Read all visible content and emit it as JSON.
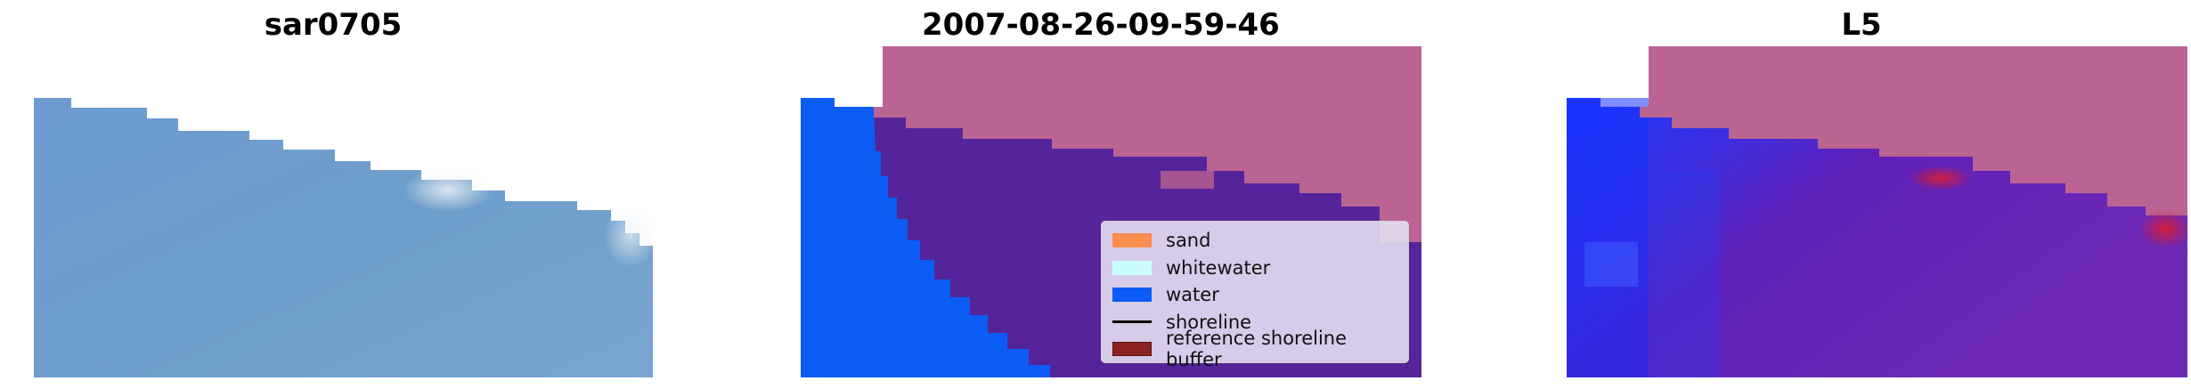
{
  "panels": [
    {
      "title": "sar0705"
    },
    {
      "title": "2007-08-26-09-59-46"
    },
    {
      "title": "L5"
    }
  ],
  "legend": {
    "items": [
      {
        "label": "sand",
        "color": "#f98e4e",
        "kind": "patch"
      },
      {
        "label": "whitewater",
        "color": "#ccfdfe",
        "kind": "patch"
      },
      {
        "label": "water",
        "color": "#0a5cf5",
        "kind": "patch"
      },
      {
        "label": "shoreline",
        "color": "#000000",
        "kind": "line"
      },
      {
        "label": "reference shoreline buffer",
        "color": "#8b2323",
        "kind": "patch",
        "edge": "#5a1010"
      }
    ]
  },
  "colors": {
    "rgb_water": "#6c9ccf",
    "class_water": "#0a5cf5",
    "class_overlap": "#55249a",
    "buffer_overlay": "#bb6494",
    "index_blue": "#1c30ff",
    "index_purple": "#6a20b0",
    "index_red": "#c81e4a"
  }
}
